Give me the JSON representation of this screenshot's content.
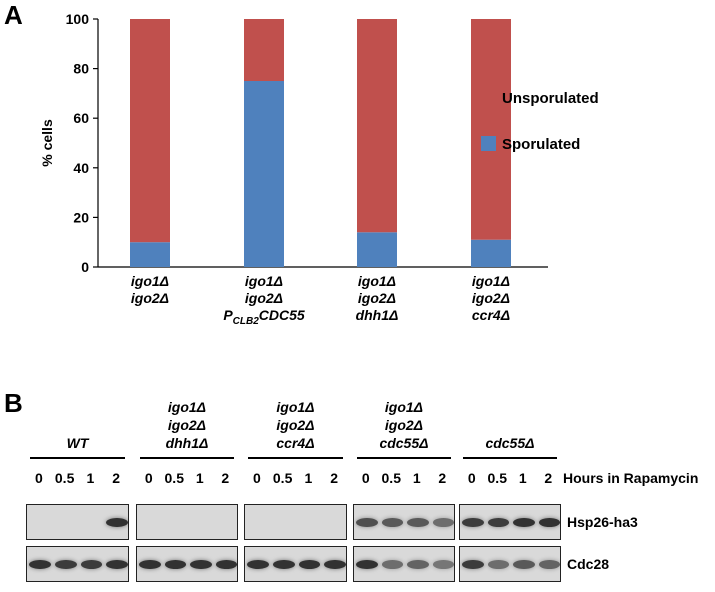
{
  "panels": {
    "a_letter": "A",
    "b_letter": "B"
  },
  "chart_data": {
    "type": "bar",
    "stacked": true,
    "categories": [
      [
        "igo1Δ",
        "igo2Δ"
      ],
      [
        "igo1Δ",
        "igo2Δ",
        "PCLB2CDC55"
      ],
      [
        "igo1Δ",
        "igo2Δ",
        "dhh1Δ"
      ],
      [
        "igo1Δ",
        "igo2Δ",
        "ccr4Δ"
      ]
    ],
    "series": [
      {
        "name": "Sporulated",
        "color": "#4f81bd",
        "values": [
          10,
          75,
          14,
          11
        ]
      },
      {
        "name": "Unsporulated",
        "color": "#c0504d",
        "values": [
          90,
          25,
          86,
          89
        ]
      }
    ],
    "ylabel": "% cells",
    "ylim": [
      0,
      100
    ],
    "yticks": [
      0,
      20,
      40,
      60,
      80,
      100
    ],
    "legend_position": "right",
    "grid": false
  },
  "blot": {
    "groups": [
      {
        "lines": [
          "WT"
        ]
      },
      {
        "lines": [
          "igo1Δ",
          "igo2Δ",
          "dhh1Δ"
        ]
      },
      {
        "lines": [
          "igo1Δ",
          "igo2Δ",
          "ccr4Δ"
        ]
      },
      {
        "lines": [
          "igo1Δ",
          "igo2Δ",
          "cdc55Δ"
        ]
      },
      {
        "lines": [
          "cdc55Δ"
        ]
      }
    ],
    "time_points": [
      "0",
      "0.5",
      "1",
      "2"
    ],
    "time_axis_label": "Hours in Rapamycin",
    "rows": [
      {
        "name": "Hsp26-ha3",
        "intensity": [
          [
            0,
            0,
            0,
            0.85
          ],
          [
            0,
            0,
            0,
            0
          ],
          [
            0,
            0,
            0,
            0
          ],
          [
            0.7,
            0.65,
            0.65,
            0.55
          ],
          [
            0.8,
            0.8,
            0.85,
            0.85
          ]
        ]
      },
      {
        "name": "Cdc28",
        "intensity": [
          [
            0.85,
            0.8,
            0.8,
            0.85
          ],
          [
            0.85,
            0.85,
            0.85,
            0.85
          ],
          [
            0.85,
            0.85,
            0.85,
            0.85
          ],
          [
            0.85,
            0.55,
            0.6,
            0.5
          ],
          [
            0.8,
            0.55,
            0.65,
            0.6
          ]
        ]
      }
    ]
  }
}
